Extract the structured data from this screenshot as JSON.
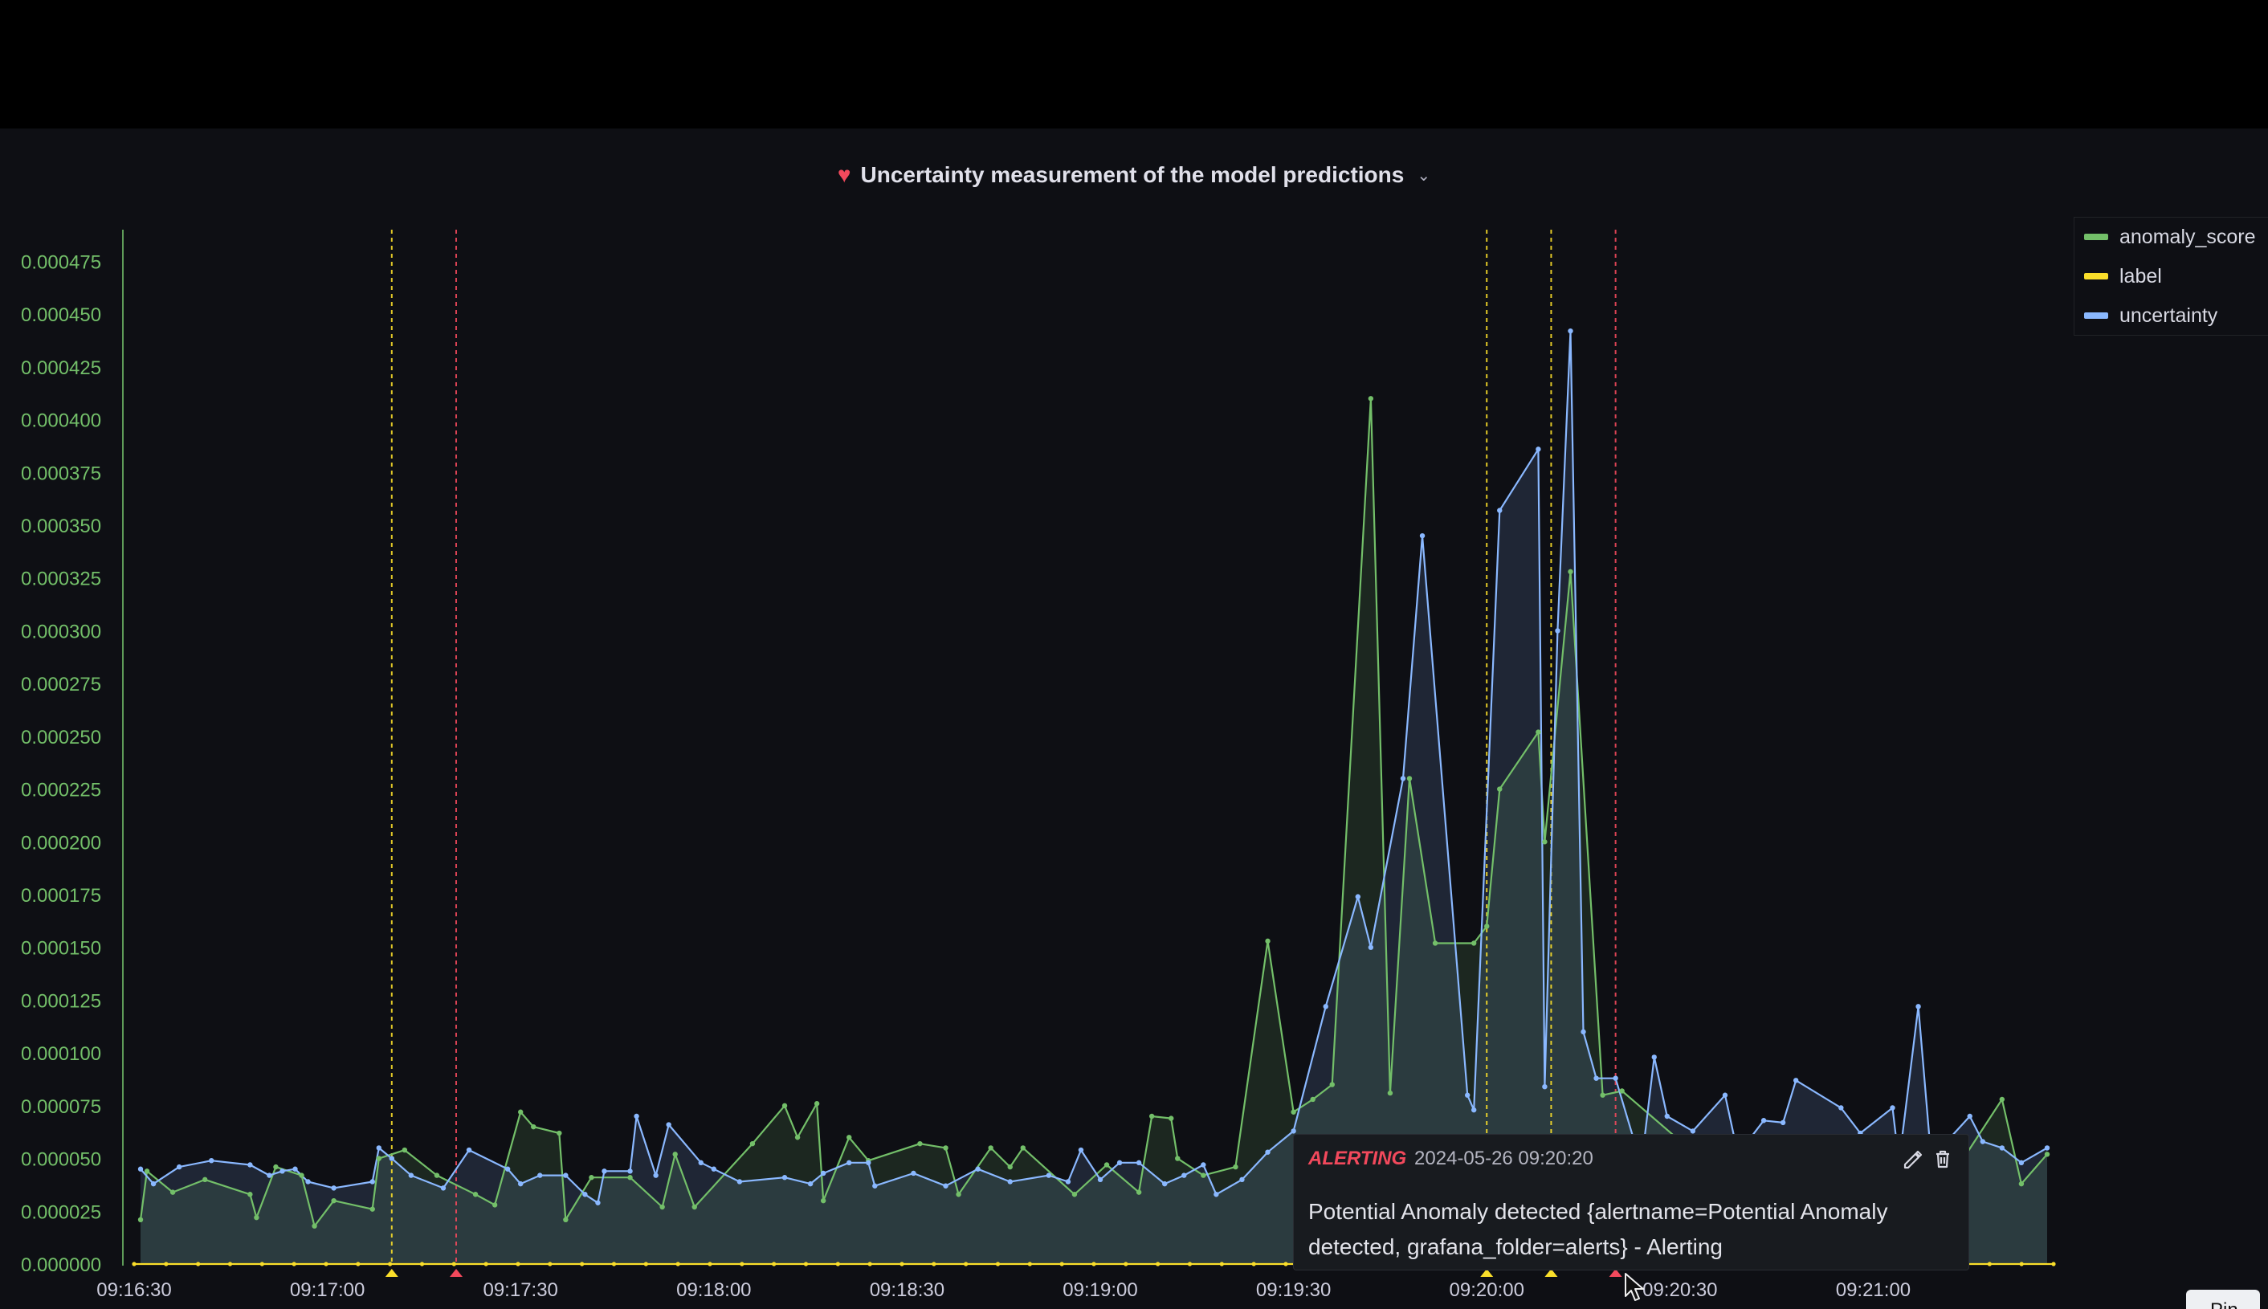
{
  "panel": {
    "title": "Uncertainty measurement of the model predictions",
    "title_icon": "broken-heart-icon",
    "title_icon_color": "#f2495c",
    "menu_icon": "chevron-down-icon"
  },
  "legend": {
    "items": [
      {
        "label": "anomaly_score",
        "color": "#73bf69"
      },
      {
        "label": "label",
        "color": "#fade2a"
      },
      {
        "label": "uncertainty",
        "color": "#8ab8ff"
      }
    ]
  },
  "annotation": {
    "state": "ALERTING",
    "time": "2024-05-26 09:20:20",
    "text": "Potential Anomaly detected {alertname=Potential Anomaly detected, grafana_folder=alerts} - Alerting",
    "state_color": "#f2495c",
    "edit_icon": "pencil-icon",
    "delete_icon": "trash-icon"
  },
  "pin_button": {
    "label": "Pin"
  },
  "chart_data": {
    "type": "area",
    "title": "Uncertainty measurement of the model predictions",
    "x_labels": [
      "09:16:30",
      "09:17:00",
      "09:17:30",
      "09:18:00",
      "09:18:30",
      "09:19:00",
      "09:19:30",
      "09:20:00",
      "09:20:30",
      "09:21:00"
    ],
    "x_range": [
      "09:16:30",
      "09:21:28"
    ],
    "y_labels": [
      "0.000000",
      "0.000025",
      "0.000050",
      "0.000075",
      "0.000100",
      "0.000125",
      "0.000150",
      "0.000175",
      "0.000200",
      "0.000225",
      "0.000250",
      "0.000275",
      "0.000300",
      "0.000325",
      "0.000350",
      "0.000375",
      "0.000400",
      "0.000425",
      "0.000450",
      "0.000475"
    ],
    "ylim": [
      0,
      0.00049
    ],
    "grid": false,
    "legend_position": "right",
    "series": [
      {
        "name": "anomaly_score",
        "color": "#73bf69",
        "points": [
          [
            "09:16:31",
            2.1e-05
          ],
          [
            "09:16:32",
            4.4e-05
          ],
          [
            "09:16:36",
            3.4e-05
          ],
          [
            "09:16:41",
            4e-05
          ],
          [
            "09:16:48",
            3.3e-05
          ],
          [
            "09:16:49",
            2.2e-05
          ],
          [
            "09:16:52",
            4.6e-05
          ],
          [
            "09:16:56",
            4.2e-05
          ],
          [
            "09:16:58",
            1.8e-05
          ],
          [
            "09:17:01",
            3e-05
          ],
          [
            "09:17:07",
            2.6e-05
          ],
          [
            "09:17:08",
            5e-05
          ],
          [
            "09:17:12",
            5.4e-05
          ],
          [
            "09:17:17",
            4.2e-05
          ],
          [
            "09:17:23",
            3.3e-05
          ],
          [
            "09:17:26",
            2.8e-05
          ],
          [
            "09:17:30",
            7.2e-05
          ],
          [
            "09:17:32",
            6.5e-05
          ],
          [
            "09:17:36",
            6.2e-05
          ],
          [
            "09:17:37",
            2.1e-05
          ],
          [
            "09:17:41",
            4.1e-05
          ],
          [
            "09:17:47",
            4.1e-05
          ],
          [
            "09:17:52",
            2.7e-05
          ],
          [
            "09:17:54",
            5.2e-05
          ],
          [
            "09:17:57",
            2.7e-05
          ],
          [
            "09:18:06",
            5.7e-05
          ],
          [
            "09:18:11",
            7.5e-05
          ],
          [
            "09:18:13",
            6e-05
          ],
          [
            "09:18:16",
            7.6e-05
          ],
          [
            "09:18:17",
            3e-05
          ],
          [
            "09:18:21",
            6e-05
          ],
          [
            "09:18:24",
            4.9e-05
          ],
          [
            "09:18:32",
            5.7e-05
          ],
          [
            "09:18:36",
            5.5e-05
          ],
          [
            "09:18:38",
            3.3e-05
          ],
          [
            "09:18:43",
            5.5e-05
          ],
          [
            "09:18:46",
            4.6e-05
          ],
          [
            "09:18:48",
            5.5e-05
          ],
          [
            "09:18:56",
            3.3e-05
          ],
          [
            "09:19:01",
            4.7e-05
          ],
          [
            "09:19:06",
            3.4e-05
          ],
          [
            "09:19:08",
            7e-05
          ],
          [
            "09:19:11",
            6.9e-05
          ],
          [
            "09:19:12",
            5e-05
          ],
          [
            "09:19:16",
            4.2e-05
          ],
          [
            "09:19:21",
            4.6e-05
          ],
          [
            "09:19:26",
            0.000153
          ],
          [
            "09:19:30",
            7.2e-05
          ],
          [
            "09:19:33",
            7.8e-05
          ],
          [
            "09:19:36",
            8.5e-05
          ],
          [
            "09:19:42",
            0.00041
          ],
          [
            "09:19:45",
            8.1e-05
          ],
          [
            "09:19:48",
            0.00023
          ],
          [
            "09:19:52",
            0.000152
          ],
          [
            "09:19:58",
            0.000152
          ],
          [
            "09:20:00",
            0.00016
          ],
          [
            "09:20:02",
            0.000225
          ],
          [
            "09:20:08",
            0.000252
          ],
          [
            "09:20:09",
            0.0002
          ],
          [
            "09:20:13",
            0.000328
          ],
          [
            "09:20:18",
            8e-05
          ],
          [
            "09:20:21",
            8.2e-05
          ],
          [
            "09:20:37",
            4e-05
          ],
          [
            "09:20:45",
            4.8e-05
          ],
          [
            "09:20:58",
            5.5e-05
          ],
          [
            "09:21:06",
            4.5e-05
          ],
          [
            "09:21:14",
            5e-05
          ],
          [
            "09:21:20",
            7.8e-05
          ],
          [
            "09:21:23",
            3.8e-05
          ],
          [
            "09:21:27",
            5.2e-05
          ]
        ]
      },
      {
        "name": "label",
        "color": "#fade2a",
        "points": [
          [
            "09:16:30",
            0
          ],
          [
            "09:21:28",
            0
          ]
        ]
      },
      {
        "name": "uncertainty",
        "color": "#8ab8ff",
        "points": [
          [
            "09:16:31",
            4.5e-05
          ],
          [
            "09:16:33",
            3.8e-05
          ],
          [
            "09:16:37",
            4.6e-05
          ],
          [
            "09:16:42",
            4.9e-05
          ],
          [
            "09:16:48",
            4.7e-05
          ],
          [
            "09:16:51",
            4.2e-05
          ],
          [
            "09:16:53",
            4.4e-05
          ],
          [
            "09:16:55",
            4.5e-05
          ],
          [
            "09:16:57",
            3.9e-05
          ],
          [
            "09:17:01",
            3.6e-05
          ],
          [
            "09:17:07",
            3.9e-05
          ],
          [
            "09:17:08",
            5.5e-05
          ],
          [
            "09:17:10",
            5e-05
          ],
          [
            "09:17:13",
            4.2e-05
          ],
          [
            "09:17:18",
            3.6e-05
          ],
          [
            "09:17:22",
            5.4e-05
          ],
          [
            "09:17:28",
            4.5e-05
          ],
          [
            "09:17:30",
            3.8e-05
          ],
          [
            "09:17:33",
            4.2e-05
          ],
          [
            "09:17:37",
            4.2e-05
          ],
          [
            "09:17:40",
            3.3e-05
          ],
          [
            "09:17:42",
            2.9e-05
          ],
          [
            "09:17:43",
            4.4e-05
          ],
          [
            "09:17:47",
            4.4e-05
          ],
          [
            "09:17:48",
            7e-05
          ],
          [
            "09:17:51",
            4.2e-05
          ],
          [
            "09:17:53",
            6.6e-05
          ],
          [
            "09:17:58",
            4.8e-05
          ],
          [
            "09:18:00",
            4.5e-05
          ],
          [
            "09:18:04",
            3.9e-05
          ],
          [
            "09:18:11",
            4.1e-05
          ],
          [
            "09:18:15",
            3.8e-05
          ],
          [
            "09:18:17",
            4.3e-05
          ],
          [
            "09:18:21",
            4.8e-05
          ],
          [
            "09:18:24",
            4.8e-05
          ],
          [
            "09:18:25",
            3.7e-05
          ],
          [
            "09:18:31",
            4.3e-05
          ],
          [
            "09:18:36",
            3.7e-05
          ],
          [
            "09:18:41",
            4.5e-05
          ],
          [
            "09:18:46",
            3.9e-05
          ],
          [
            "09:18:52",
            4.2e-05
          ],
          [
            "09:18:55",
            3.9e-05
          ],
          [
            "09:18:57",
            5.4e-05
          ],
          [
            "09:19:00",
            4e-05
          ],
          [
            "09:19:03",
            4.8e-05
          ],
          [
            "09:19:06",
            4.8e-05
          ],
          [
            "09:19:10",
            3.8e-05
          ],
          [
            "09:19:13",
            4.2e-05
          ],
          [
            "09:19:16",
            4.7e-05
          ],
          [
            "09:19:18",
            3.3e-05
          ],
          [
            "09:19:22",
            4e-05
          ],
          [
            "09:19:26",
            5.3e-05
          ],
          [
            "09:19:30",
            6.3e-05
          ],
          [
            "09:19:35",
            0.000122
          ],
          [
            "09:19:40",
            0.000174
          ],
          [
            "09:19:42",
            0.00015
          ],
          [
            "09:19:47",
            0.00023
          ],
          [
            "09:19:50",
            0.000345
          ],
          [
            "09:19:57",
            8e-05
          ],
          [
            "09:19:58",
            7.3e-05
          ],
          [
            "09:20:02",
            0.000357
          ],
          [
            "09:20:08",
            0.000386
          ],
          [
            "09:20:09",
            8.4e-05
          ],
          [
            "09:20:11",
            0.0003
          ],
          [
            "09:20:13",
            0.000442
          ],
          [
            "09:20:15",
            0.00011
          ],
          [
            "09:20:17",
            8.8e-05
          ],
          [
            "09:20:20",
            8.8e-05
          ],
          [
            "09:20:24",
            4.7e-05
          ],
          [
            "09:20:26",
            9.8e-05
          ],
          [
            "09:20:28",
            7e-05
          ],
          [
            "09:20:32",
            6.3e-05
          ],
          [
            "09:20:37",
            8e-05
          ],
          [
            "09:20:39",
            5.2e-05
          ],
          [
            "09:20:43",
            6.8e-05
          ],
          [
            "09:20:46",
            6.7e-05
          ],
          [
            "09:20:48",
            8.7e-05
          ],
          [
            "09:20:55",
            7.4e-05
          ],
          [
            "09:20:58",
            6.2e-05
          ],
          [
            "09:21:03",
            7.4e-05
          ],
          [
            "09:21:04",
            4.8e-05
          ],
          [
            "09:21:07",
            0.000122
          ],
          [
            "09:21:09",
            5e-05
          ],
          [
            "09:21:15",
            7e-05
          ],
          [
            "09:21:17",
            5.8e-05
          ],
          [
            "09:21:20",
            5.5e-05
          ],
          [
            "09:21:23",
            4.8e-05
          ],
          [
            "09:21:27",
            5.5e-05
          ]
        ]
      }
    ],
    "annotations": [
      {
        "time": "09:17:10",
        "color": "#fade2a"
      },
      {
        "time": "09:17:20",
        "color": "#f2495c"
      },
      {
        "time": "09:20:00",
        "color": "#fade2a"
      },
      {
        "time": "09:20:10",
        "color": "#fade2a"
      },
      {
        "time": "09:20:20",
        "color": "#f2495c"
      }
    ]
  }
}
